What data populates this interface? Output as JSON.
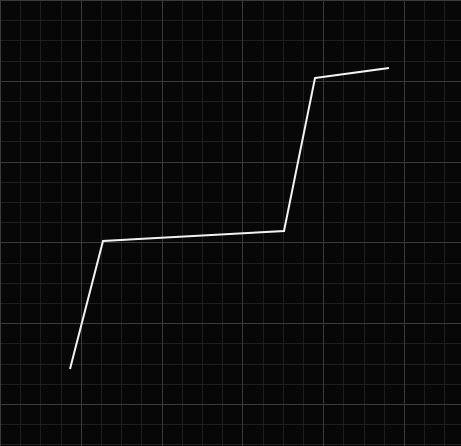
{
  "canvas": {
    "background_color": "#070707",
    "grid": {
      "minor_color": "#1f1f1f",
      "major_color": "#3a3a3a"
    },
    "polyline": {
      "stroke_color": "#f2f2f2",
      "vertex_count": 6
    }
  }
}
